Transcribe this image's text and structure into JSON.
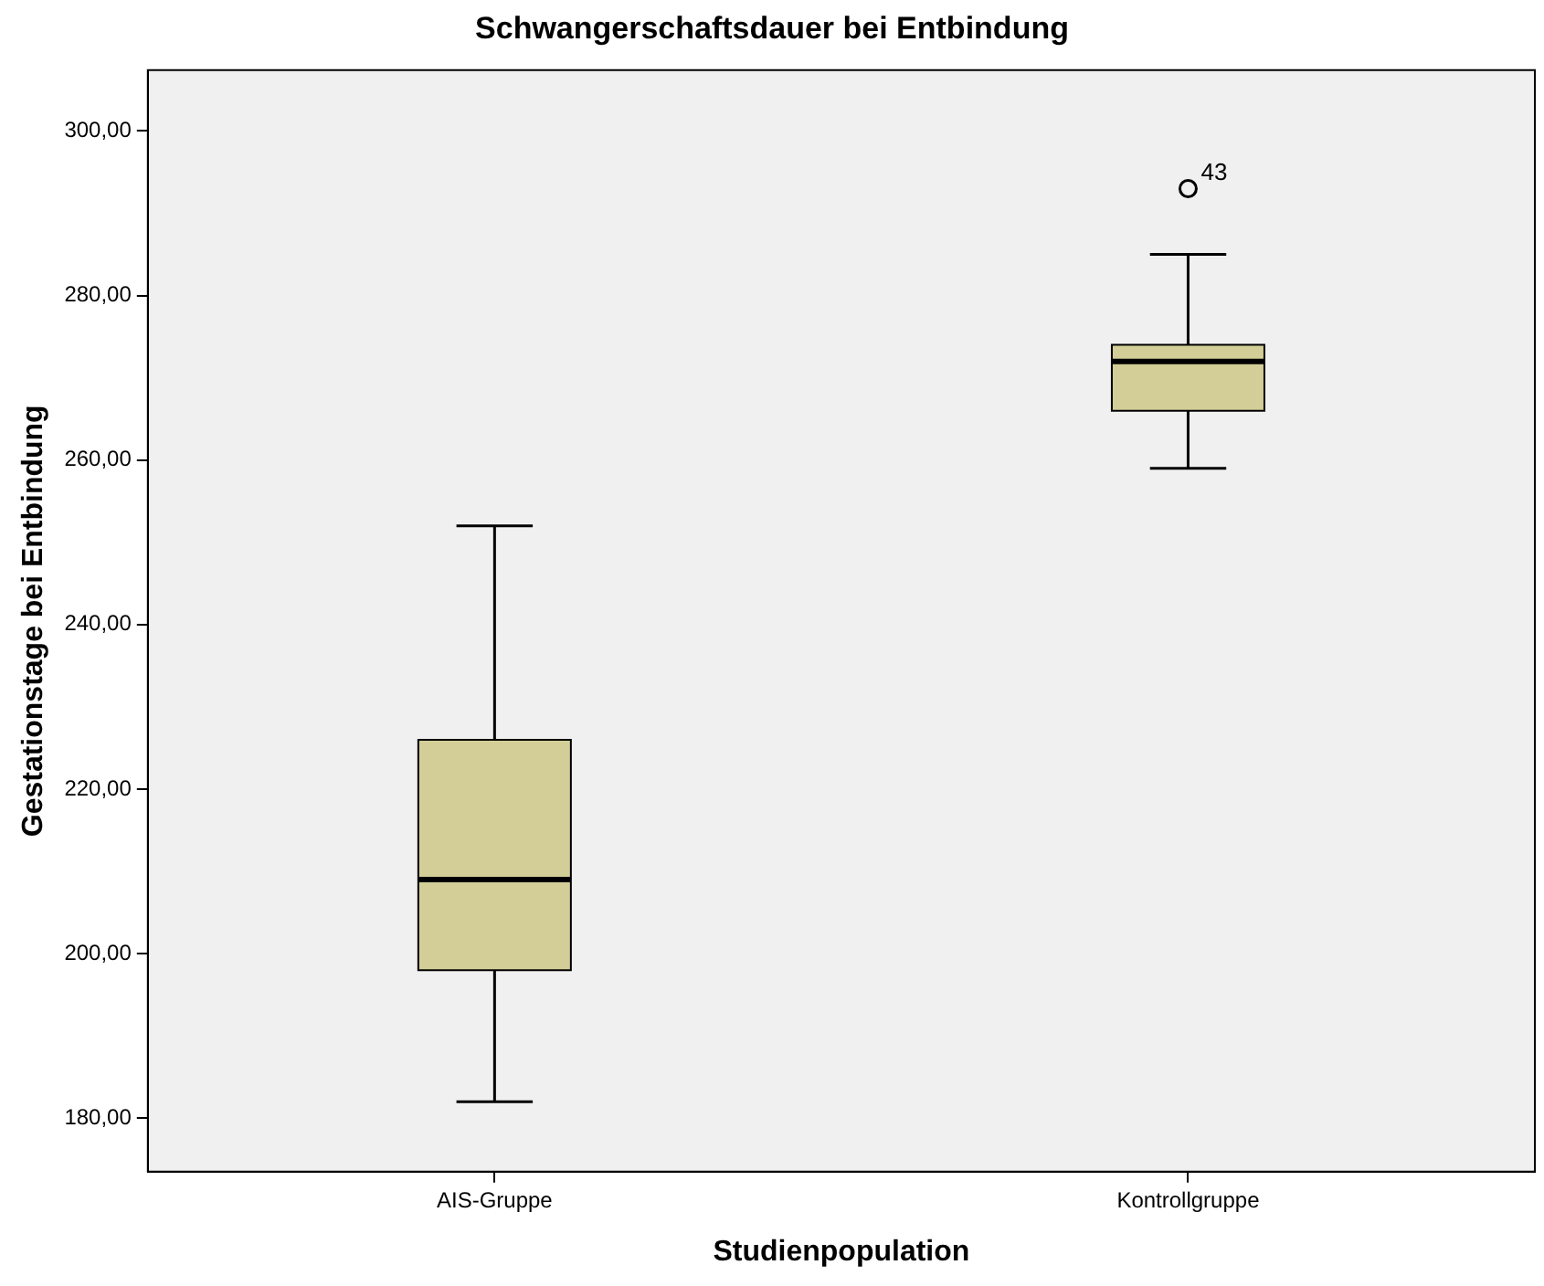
{
  "chart_data": {
    "type": "box",
    "title": "Schwangerschaftsdauer bei Entbindung",
    "xlabel": "Studienpopulation",
    "ylabel": "Gestationstage bei Entbindung",
    "categories": [
      "AIS-Gruppe",
      "Kontrollgruppe"
    ],
    "boxes": [
      {
        "low": 182,
        "q1": 198,
        "median": 209,
        "q3": 226,
        "high": 252
      },
      {
        "low": 259,
        "q1": 266,
        "median": 272,
        "q3": 274,
        "high": 285,
        "outliers": [
          293
        ]
      }
    ],
    "color": "#d3ce97",
    "ylim": [
      173.5,
      307.4
    ],
    "yticks": [
      {
        "value": 180,
        "label": "180,00"
      },
      {
        "value": 200,
        "label": "200,00"
      },
      {
        "value": 220,
        "label": "220,00"
      },
      {
        "value": 240,
        "label": "240,00"
      },
      {
        "value": 260,
        "label": "260,00"
      },
      {
        "value": 280,
        "label": "280,00"
      },
      {
        "value": 300,
        "label": "300,00"
      }
    ],
    "annotations": [
      "43"
    ],
    "grid": false,
    "legend": false
  }
}
